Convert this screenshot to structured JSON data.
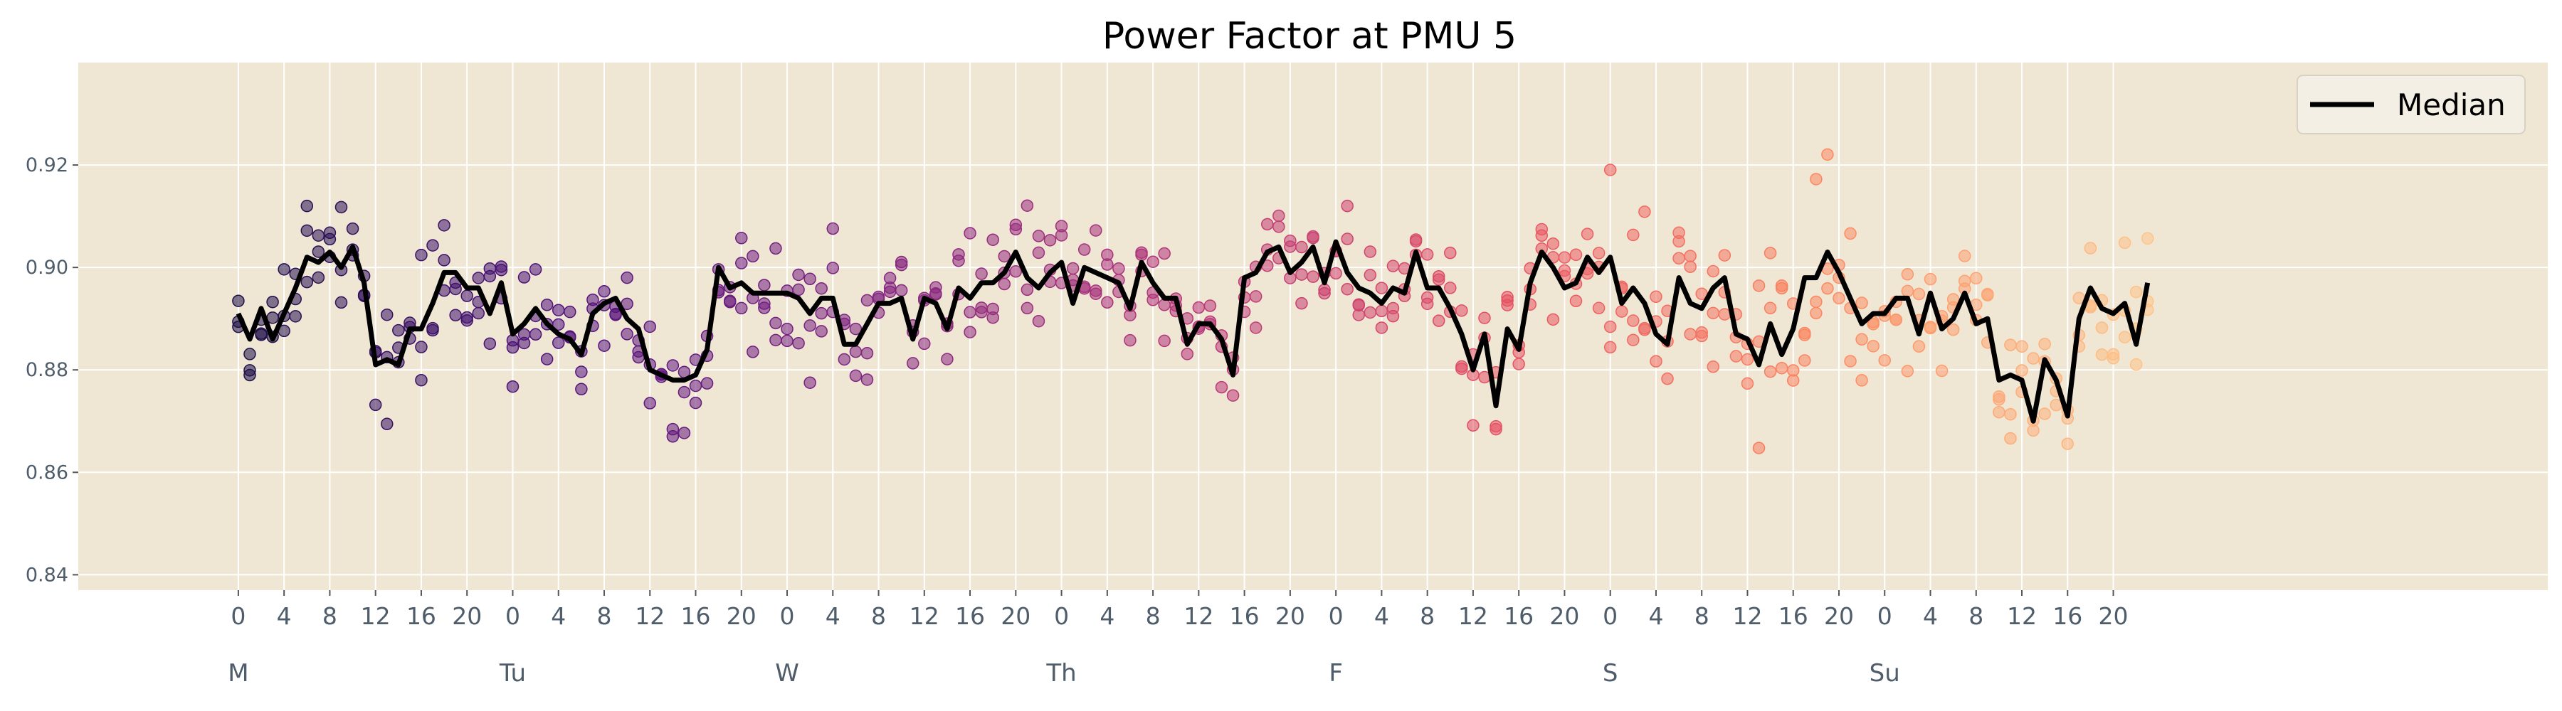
{
  "chart_data": {
    "type": "scatter",
    "title": "Power Factor at PMU 5",
    "xlabel": "",
    "ylabel": "",
    "ylim": [
      0.837,
      0.94
    ],
    "yticks": [
      0.84,
      0.86,
      0.88,
      0.9,
      0.92
    ],
    "ytick_labels": [
      "0.84",
      "0.86",
      "0.88",
      "0.90",
      "0.92"
    ],
    "xlim": [
      -14,
      202
    ],
    "xtick_hours": [
      0,
      4,
      8,
      12,
      16,
      20,
      24,
      28,
      32,
      36,
      40,
      44,
      48,
      52,
      56,
      60,
      64,
      68,
      72,
      76,
      80,
      84,
      88,
      92,
      96,
      100,
      104,
      108,
      112,
      116,
      120,
      124,
      128,
      132,
      136,
      140,
      144,
      148,
      152,
      156,
      160,
      164
    ],
    "xtick_labels": [
      "0",
      "4",
      "8",
      "12",
      "16",
      "20",
      "0",
      "4",
      "8",
      "12",
      "16",
      "20",
      "0",
      "4",
      "8",
      "12",
      "16",
      "20",
      "0",
      "4",
      "8",
      "12",
      "16",
      "20",
      "0",
      "4",
      "8",
      "12",
      "16",
      "20",
      "0",
      "4",
      "8",
      "12",
      "16",
      "20",
      "0",
      "4",
      "8",
      "12",
      "16",
      "20"
    ],
    "day_labels": [
      {
        "hour": 0,
        "label": "M"
      },
      {
        "hour": 24,
        "label": "Tu"
      },
      {
        "hour": 48,
        "label": "W"
      },
      {
        "hour": 72,
        "label": "Th"
      },
      {
        "hour": 96,
        "label": "F"
      },
      {
        "hour": 120,
        "label": "S"
      },
      {
        "hour": 144,
        "label": "Su"
      }
    ],
    "grid": true,
    "legend_position": "top-right",
    "legend": [
      {
        "name": "Median",
        "color": "#000000"
      }
    ],
    "median_hours": [
      0,
      1,
      2,
      3,
      4,
      5,
      6,
      7,
      8,
      9,
      10,
      11,
      12,
      13,
      14,
      15,
      16,
      17,
      18,
      19,
      20,
      21,
      22,
      23,
      24,
      25,
      26,
      27,
      28,
      29,
      30,
      31,
      32,
      33,
      34,
      35,
      36,
      37,
      38,
      39,
      40,
      41,
      42,
      43,
      44,
      45,
      46,
      47,
      48,
      49,
      50,
      51,
      52,
      53,
      54,
      55,
      56,
      57,
      58,
      59,
      60,
      61,
      62,
      63,
      64,
      65,
      66,
      67,
      68,
      69,
      70,
      71,
      72,
      73,
      74,
      75,
      76,
      77,
      78,
      79,
      80,
      81,
      82,
      83,
      84,
      85,
      86,
      87,
      88,
      89,
      90,
      91,
      92,
      93,
      94,
      95,
      96,
      97,
      98,
      99,
      100,
      101,
      102,
      103,
      104,
      105,
      106,
      107,
      108,
      109,
      110,
      111,
      112,
      113,
      114,
      115,
      116,
      117,
      118,
      119,
      120,
      121,
      122,
      123,
      124,
      125,
      126,
      127,
      128,
      129,
      130,
      131,
      132,
      133,
      134,
      135,
      136,
      137,
      138,
      139,
      140,
      141,
      142,
      143,
      144,
      145,
      146,
      147,
      148,
      149,
      150,
      151,
      152,
      153,
      154,
      155,
      156,
      157,
      158,
      159,
      160,
      161,
      162,
      163,
      164,
      165,
      166,
      167
    ],
    "median": [
      0.891,
      0.886,
      0.892,
      0.886,
      0.891,
      0.896,
      0.902,
      0.901,
      0.903,
      0.9,
      0.904,
      0.897,
      0.881,
      0.882,
      0.881,
      0.888,
      0.888,
      0.893,
      0.899,
      0.899,
      0.896,
      0.896,
      0.891,
      0.897,
      0.887,
      0.889,
      0.892,
      0.889,
      0.887,
      0.886,
      0.883,
      0.891,
      0.893,
      0.894,
      0.89,
      0.888,
      0.88,
      0.879,
      0.878,
      0.878,
      0.879,
      0.884,
      0.9,
      0.896,
      0.897,
      0.895,
      0.895,
      0.895,
      0.895,
      0.894,
      0.891,
      0.894,
      0.894,
      0.885,
      0.885,
      0.889,
      0.893,
      0.893,
      0.894,
      0.886,
      0.894,
      0.893,
      0.888,
      0.896,
      0.894,
      0.897,
      0.897,
      0.899,
      0.903,
      0.898,
      0.896,
      0.899,
      0.901,
      0.893,
      0.9,
      0.899,
      0.898,
      0.897,
      0.892,
      0.901,
      0.897,
      0.894,
      0.894,
      0.885,
      0.889,
      0.889,
      0.886,
      0.879,
      0.898,
      0.899,
      0.903,
      0.904,
      0.899,
      0.901,
      0.904,
      0.897,
      0.905,
      0.899,
      0.896,
      0.895,
      0.893,
      0.896,
      0.895,
      0.903,
      0.896,
      0.896,
      0.892,
      0.887,
      0.88,
      0.887,
      0.873,
      0.888,
      0.884,
      0.897,
      0.903,
      0.9,
      0.896,
      0.897,
      0.902,
      0.899,
      0.902,
      0.893,
      0.896,
      0.893,
      0.887,
      0.885,
      0.898,
      0.893,
      0.892,
      0.896,
      0.898,
      0.887,
      0.886,
      0.881,
      0.889,
      0.883,
      0.888,
      0.898,
      0.898,
      0.903,
      0.899,
      0.894,
      0.889,
      0.891,
      0.891,
      0.894,
      0.894,
      0.887,
      0.895,
      0.888,
      0.89,
      0.895,
      0.889,
      0.89,
      0.878,
      0.879,
      0.878,
      0.87,
      0.882,
      0.878,
      0.871,
      0.89,
      0.896,
      0.892,
      0.891,
      0.893,
      0.885,
      0.897,
      0.889
    ],
    "scatter_colormap": [
      "#1d1147",
      "#51127c",
      "#822681",
      "#b73779",
      "#e75263",
      "#fc8961",
      "#fec488"
    ],
    "scatter_seed": 5,
    "scatter_points_per_hour": 3
  }
}
